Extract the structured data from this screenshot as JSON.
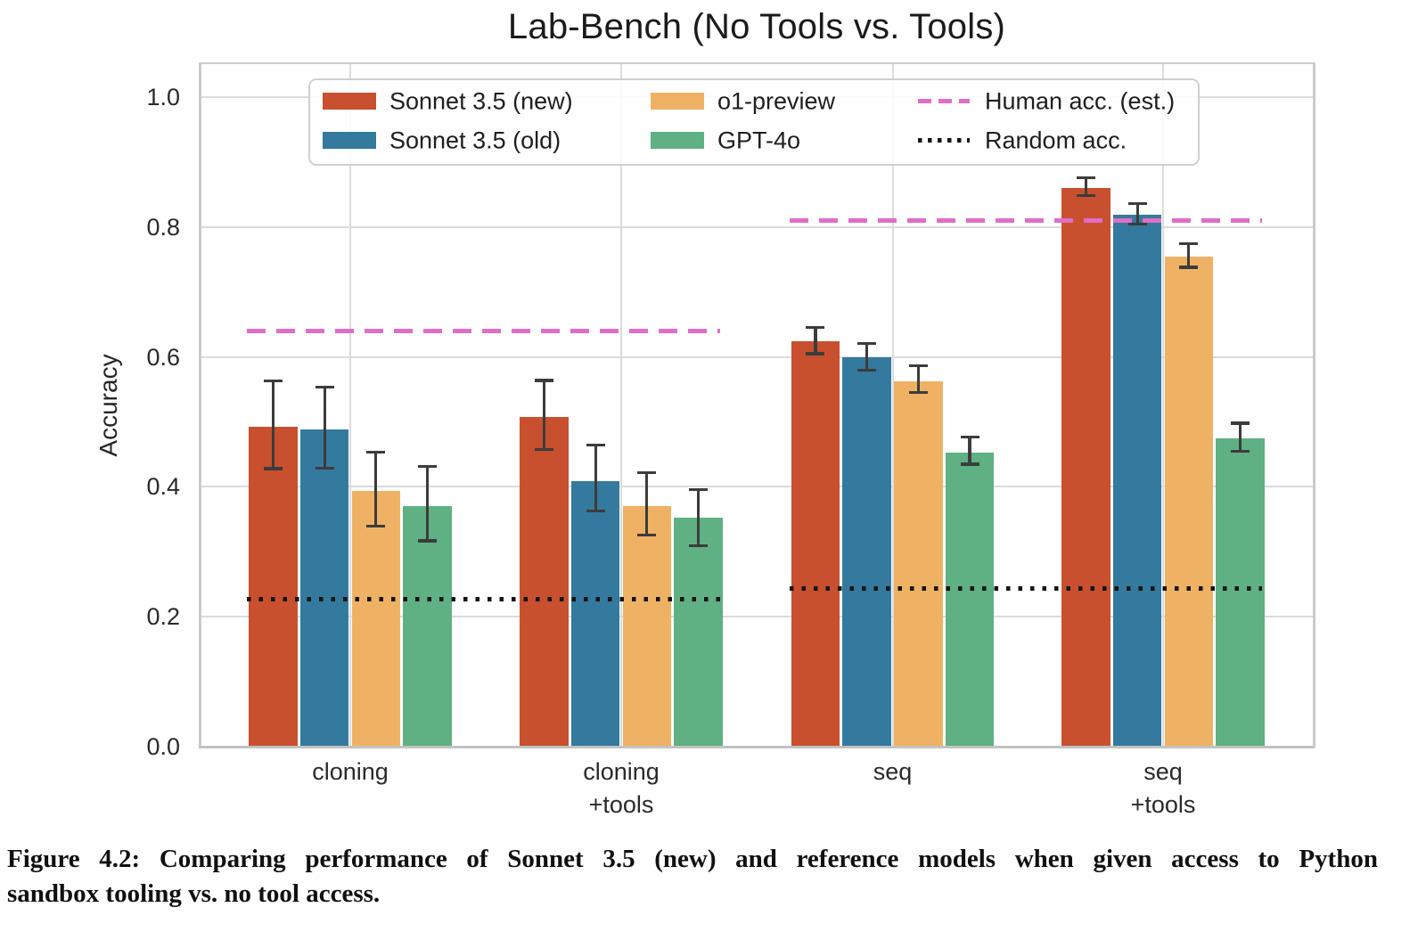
{
  "figure": {
    "caption_line1": "Figure 4.2: Comparing performance of Sonnet 3.5 (new) and reference models when given access to Python",
    "caption_line2": "sandbox tooling vs. no tool access."
  },
  "colors": {
    "background": "#ffffff",
    "grid": "#dbdbdb",
    "spine": "#cbcbcb",
    "bottom_spine": "#c2c2c2",
    "error_bar": "#3c3c3c",
    "text": "#2a2a2a",
    "title_text": "#1b1b1b"
  },
  "chart_data": {
    "type": "bar",
    "title": "Lab-Bench (No Tools vs. Tools)",
    "ylabel": "Accuracy",
    "xlabel": "",
    "ylim": [
      0.0,
      1.052
    ],
    "yticks": [
      0.0,
      0.2,
      0.4,
      0.6,
      0.8,
      1.0
    ],
    "grid": true,
    "legend_position": "upper center",
    "categories": [
      "cloning",
      "cloning\n+tools",
      "seq",
      "seq\n+tools"
    ],
    "series": [
      {
        "name": "Sonnet 3.5 (new)",
        "color": "#C8502E",
        "values": [
          0.493,
          0.508,
          0.624,
          0.86
        ],
        "err_lo": [
          0.428,
          0.458,
          0.605,
          0.849
        ],
        "err_hi": [
          0.563,
          0.564,
          0.646,
          0.876
        ]
      },
      {
        "name": "Sonnet 3.5 (old)",
        "color": "#337A9E",
        "values": [
          0.488,
          0.409,
          0.599,
          0.819
        ],
        "err_lo": [
          0.429,
          0.363,
          0.58,
          0.805
        ],
        "err_hi": [
          0.554,
          0.464,
          0.621,
          0.836
        ]
      },
      {
        "name": "o1-preview",
        "color": "#EFB264",
        "values": [
          0.394,
          0.371,
          0.562,
          0.754
        ],
        "err_lo": [
          0.34,
          0.326,
          0.545,
          0.738
        ],
        "err_hi": [
          0.454,
          0.422,
          0.586,
          0.774
        ]
      },
      {
        "name": "GPT-4o",
        "color": "#5FB183",
        "values": [
          0.371,
          0.352,
          0.453,
          0.475
        ],
        "err_lo": [
          0.317,
          0.31,
          0.435,
          0.455
        ],
        "err_hi": [
          0.432,
          0.396,
          0.477,
          0.498
        ]
      }
    ],
    "reference_lines": [
      {
        "name": "Human acc. (est.)",
        "style": "dashed",
        "color": "#DF6EC7",
        "segments": [
          {
            "groups": [
              0,
              1
            ],
            "value": 0.64
          },
          {
            "groups": [
              2,
              3
            ],
            "value": 0.81
          }
        ]
      },
      {
        "name": "Random acc.",
        "style": "dotted",
        "color": "#141414",
        "segments": [
          {
            "groups": [
              0,
              1
            ],
            "value": 0.227
          },
          {
            "groups": [
              2,
              3
            ],
            "value": 0.243
          }
        ]
      }
    ]
  }
}
